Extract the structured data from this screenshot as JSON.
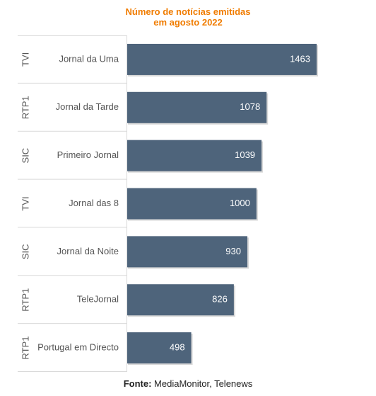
{
  "chart_data": {
    "type": "bar",
    "orientation": "horizontal",
    "title_line1": "Número de notícias emitidas",
    "title_line2": "em agosto 2022",
    "categories": [
      {
        "channel": "TVI",
        "program": "Jornal da Uma",
        "value": 1463
      },
      {
        "channel": "RTP1",
        "program": "Jornal da Tarde",
        "value": 1078
      },
      {
        "channel": "SIC",
        "program": "Primeiro Jornal",
        "value": 1039
      },
      {
        "channel": "TVI",
        "program": "Jornal das 8",
        "value": 1000
      },
      {
        "channel": "SIC",
        "program": "Jornal da Noite",
        "value": 930
      },
      {
        "channel": "RTP1",
        "program": "TeleJornal",
        "value": 826
      },
      {
        "channel": "RTP1",
        "program": "Portugal em Directo",
        "value": 498
      }
    ],
    "xlim": [
      0,
      1463
    ],
    "bar_color": "#4e647b",
    "grid": false
  },
  "source": {
    "label": "Fonte:",
    "text": " MediaMonitor, Telenews"
  }
}
